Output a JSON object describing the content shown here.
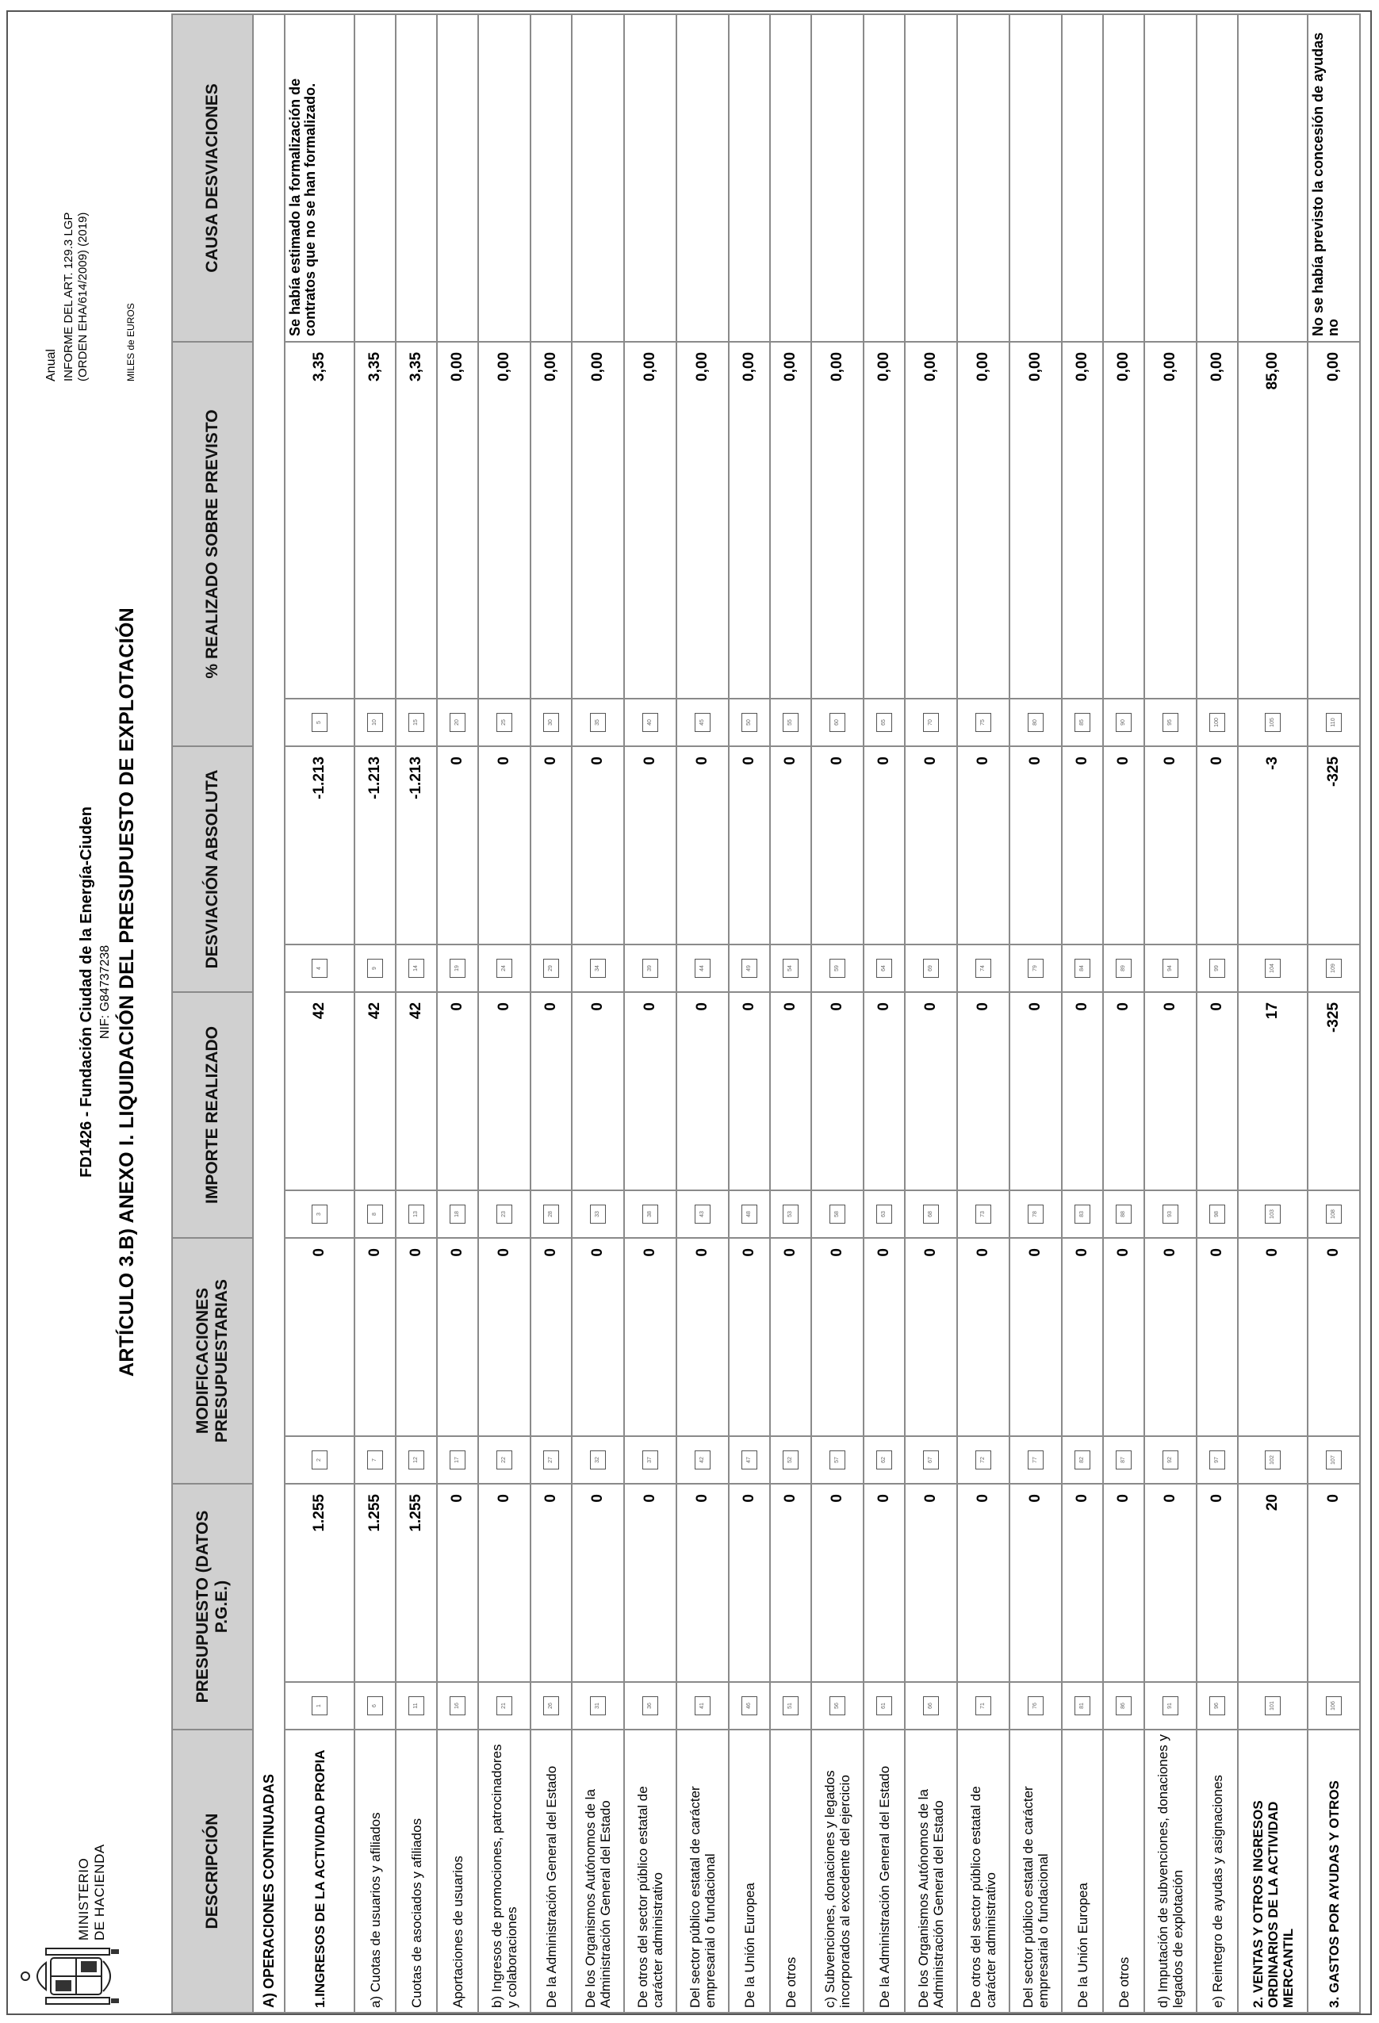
{
  "header": {
    "ministry": "MINISTERIO\nDE HACIENDA",
    "entity": "FD1426 - Fundación Ciudad de la Energía-Ciuden",
    "nif": "NIF: G84737238",
    "article_title": "ARTÍCULO 3.B) ANEXO I. LIQUIDACIÓN DEL PRESUPUESTO DE EXPLOTACIÓN",
    "periodicity": "Anual",
    "report": "INFORME DEL ART. 129.3 LGP (ORDEN EHA/614/2009) (2019)",
    "units": "MILES de EUROS"
  },
  "columns": {
    "descripcion": "DESCRIPCIÓN",
    "presupuesto": "PRESUPUESTO (DATOS P.G.E.)",
    "modificaciones": "MODIFICACIONES PRESUPUESTARIAS",
    "importe_realizado": "IMPORTE REALIZADO",
    "desviacion_absoluta": "DESVIACIÓN ABSOLUTA",
    "pct_realizado": "% REALIZADO SOBRE PREVISTO",
    "causa": "CAUSA DESVIACIONES"
  },
  "section": "A) OPERACIONES CONTINUADAS",
  "rows": [
    {
      "desc": "1.INGRESOS DE LA ACTIVIDAD PROPIA",
      "bold": true,
      "size": "tall",
      "r1": "1",
      "presupuesto": "1.255",
      "r2": "2",
      "modificaciones": "0",
      "r3": "3",
      "importe": "42",
      "r4": "4",
      "desviacion": "-1.213",
      "r5": "5",
      "pct": "3,35",
      "causa": "Se había estimado la formalización de contratos que no se han formalizado."
    },
    {
      "desc": "a) Cuotas de usuarios y afiliados",
      "bold": false,
      "size": "",
      "r1": "6",
      "presupuesto": "1.255",
      "r2": "7",
      "modificaciones": "0",
      "r3": "8",
      "importe": "42",
      "r4": "9",
      "desviacion": "-1.213",
      "r5": "10",
      "pct": "3,35",
      "causa": ""
    },
    {
      "desc": "Cuotas de asociados y afiliados",
      "bold": false,
      "size": "",
      "r1": "11",
      "presupuesto": "1.255",
      "r2": "12",
      "modificaciones": "0",
      "r3": "13",
      "importe": "42",
      "r4": "14",
      "desviacion": "-1.213",
      "r5": "15",
      "pct": "3,35",
      "causa": ""
    },
    {
      "desc": "Aportaciones de usuarios",
      "bold": false,
      "size": "",
      "r1": "16",
      "presupuesto": "0",
      "r2": "17",
      "modificaciones": "0",
      "r3": "18",
      "importe": "0",
      "r4": "19",
      "desviacion": "0",
      "r5": "20",
      "pct": "0,00",
      "causa": ""
    },
    {
      "desc": "b) Ingresos de promociones, patrocinadores y colaboraciones",
      "bold": false,
      "size": "mid",
      "r1": "21",
      "presupuesto": "0",
      "r2": "22",
      "modificaciones": "0",
      "r3": "23",
      "importe": "0",
      "r4": "24",
      "desviacion": "0",
      "r5": "25",
      "pct": "0,00",
      "causa": ""
    },
    {
      "desc": "De la Administración General del Estado",
      "bold": false,
      "size": "",
      "r1": "26",
      "presupuesto": "0",
      "r2": "27",
      "modificaciones": "0",
      "r3": "28",
      "importe": "0",
      "r4": "29",
      "desviacion": "0",
      "r5": "30",
      "pct": "0,00",
      "causa": ""
    },
    {
      "desc": "De los Organismos Autónomos de la Administración General del Estado",
      "bold": false,
      "size": "mid",
      "r1": "31",
      "presupuesto": "0",
      "r2": "32",
      "modificaciones": "0",
      "r3": "33",
      "importe": "0",
      "r4": "34",
      "desviacion": "0",
      "r5": "35",
      "pct": "0,00",
      "causa": ""
    },
    {
      "desc": "De otros del sector público estatal de carácter administrativo",
      "bold": false,
      "size": "mid",
      "r1": "36",
      "presupuesto": "0",
      "r2": "37",
      "modificaciones": "0",
      "r3": "38",
      "importe": "0",
      "r4": "39",
      "desviacion": "0",
      "r5": "40",
      "pct": "0,00",
      "causa": ""
    },
    {
      "desc": "Del sector público estatal de carácter empresarial o fundacional",
      "bold": false,
      "size": "mid",
      "r1": "41",
      "presupuesto": "0",
      "r2": "42",
      "modificaciones": "0",
      "r3": "43",
      "importe": "0",
      "r4": "44",
      "desviacion": "0",
      "r5": "45",
      "pct": "0,00",
      "causa": ""
    },
    {
      "desc": "De la Unión Europea",
      "bold": false,
      "size": "",
      "r1": "46",
      "presupuesto": "0",
      "r2": "47",
      "modificaciones": "0",
      "r3": "48",
      "importe": "0",
      "r4": "49",
      "desviacion": "0",
      "r5": "50",
      "pct": "0,00",
      "causa": ""
    },
    {
      "desc": "De otros",
      "bold": false,
      "size": "",
      "r1": "51",
      "presupuesto": "0",
      "r2": "52",
      "modificaciones": "0",
      "r3": "53",
      "importe": "0",
      "r4": "54",
      "desviacion": "0",
      "r5": "55",
      "pct": "0,00",
      "causa": ""
    },
    {
      "desc": "c) Subvenciones, donaciones y legados incorporados al excedente del ejercicio",
      "bold": false,
      "size": "mid",
      "r1": "56",
      "presupuesto": "0",
      "r2": "57",
      "modificaciones": "0",
      "r3": "58",
      "importe": "0",
      "r4": "59",
      "desviacion": "0",
      "r5": "60",
      "pct": "0,00",
      "causa": ""
    },
    {
      "desc": "De la Administración General del Estado",
      "bold": false,
      "size": "",
      "r1": "61",
      "presupuesto": "0",
      "r2": "62",
      "modificaciones": "0",
      "r3": "63",
      "importe": "0",
      "r4": "64",
      "desviacion": "0",
      "r5": "65",
      "pct": "0,00",
      "causa": ""
    },
    {
      "desc": "De los Organismos Autónomos de la Administración General del Estado",
      "bold": false,
      "size": "mid",
      "r1": "66",
      "presupuesto": "0",
      "r2": "67",
      "modificaciones": "0",
      "r3": "68",
      "importe": "0",
      "r4": "69",
      "desviacion": "0",
      "r5": "70",
      "pct": "0,00",
      "causa": ""
    },
    {
      "desc": "De otros del sector público estatal de carácter administrativo",
      "bold": false,
      "size": "mid",
      "r1": "71",
      "presupuesto": "0",
      "r2": "72",
      "modificaciones": "0",
      "r3": "73",
      "importe": "0",
      "r4": "74",
      "desviacion": "0",
      "r5": "75",
      "pct": "0,00",
      "causa": ""
    },
    {
      "desc": "Del sector público estatal de carácter empresarial o fundacional",
      "bold": false,
      "size": "mid",
      "r1": "76",
      "presupuesto": "0",
      "r2": "77",
      "modificaciones": "0",
      "r3": "78",
      "importe": "0",
      "r4": "79",
      "desviacion": "0",
      "r5": "80",
      "pct": "0,00",
      "causa": ""
    },
    {
      "desc": "De la Unión Europea",
      "bold": false,
      "size": "",
      "r1": "81",
      "presupuesto": "0",
      "r2": "82",
      "modificaciones": "0",
      "r3": "83",
      "importe": "0",
      "r4": "84",
      "desviacion": "0",
      "r5": "85",
      "pct": "0,00",
      "causa": ""
    },
    {
      "desc": "De otros",
      "bold": false,
      "size": "",
      "r1": "86",
      "presupuesto": "0",
      "r2": "87",
      "modificaciones": "0",
      "r3": "88",
      "importe": "0",
      "r4": "89",
      "desviacion": "0",
      "r5": "90",
      "pct": "0,00",
      "causa": ""
    },
    {
      "desc": "d) Imputación de subvenciones, donaciones y legados de explotación",
      "bold": false,
      "size": "mid",
      "r1": "91",
      "presupuesto": "0",
      "r2": "92",
      "modificaciones": "0",
      "r3": "93",
      "importe": "0",
      "r4": "94",
      "desviacion": "0",
      "r5": "95",
      "pct": "0,00",
      "causa": ""
    },
    {
      "desc": "e) Reintegro de ayudas y asignaciones",
      "bold": false,
      "size": "",
      "r1": "96",
      "presupuesto": "0",
      "r2": "97",
      "modificaciones": "0",
      "r3": "98",
      "importe": "0",
      "r4": "99",
      "desviacion": "0",
      "r5": "100",
      "pct": "0,00",
      "causa": ""
    },
    {
      "desc": "2. VENTAS Y OTROS INGRESOS ORDINARIOS DE LA ACTIVIDAD MERCANTIL",
      "bold": true,
      "size": "tall",
      "r1": "101",
      "presupuesto": "20",
      "r2": "102",
      "modificaciones": "0",
      "r3": "103",
      "importe": "17",
      "r4": "104",
      "desviacion": "-3",
      "r5": "105",
      "pct": "85,00",
      "causa": ""
    },
    {
      "desc": "3. GASTOS POR AYUDAS Y OTROS",
      "bold": true,
      "size": "mid",
      "r1": "106",
      "presupuesto": "0",
      "r2": "107",
      "modificaciones": "0",
      "r3": "108",
      "importe": "-325",
      "r4": "109",
      "desviacion": "-325",
      "r5": "110",
      "pct": "0,00",
      "causa": "No se había previsto la concesión de ayudas no"
    }
  ]
}
